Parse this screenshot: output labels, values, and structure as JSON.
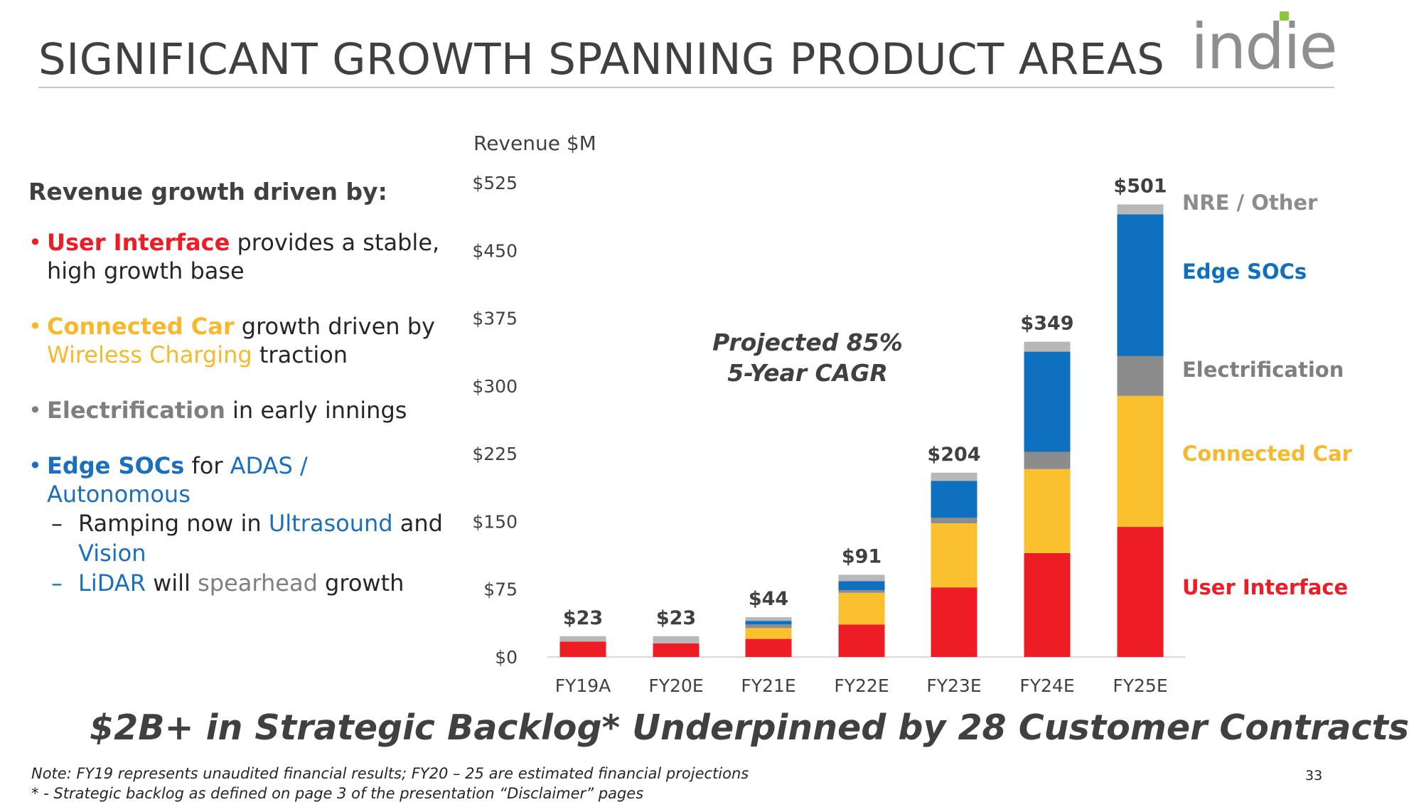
{
  "header": {
    "title": "SIGNIFICANT GROWTH SPANNING PRODUCT AREAS",
    "logo_text": "indie"
  },
  "left_panel": {
    "heading": "Revenue growth driven by:",
    "b1": {
      "hl": "User Interface",
      "rest": " provides a stable,",
      "line2": "high growth base"
    },
    "b2": {
      "hl": "Connected Car",
      "rest": " growth driven by",
      "hl2": "Wireless Charging",
      "rest2": " traction"
    },
    "b3": {
      "hl": "Electrification",
      "rest": " in early innings"
    },
    "b4": {
      "hl": "Edge SOCs",
      "mid": " for ",
      "hl2": "ADAS / Autonomous",
      "sub1": {
        "pre": "Ramping now in ",
        "hl": "Ultrasound",
        "post": " and",
        "line2": "Vision"
      },
      "sub2": {
        "hl": "LiDAR",
        "mid": " will ",
        "hl2": "spearhead",
        "post": " growth"
      }
    },
    "bullet_char": "•",
    "dash_char": "–"
  },
  "chart_data": {
    "type": "bar",
    "stacked": true,
    "ylabel": "Revenue $M",
    "ylim": [
      0,
      525
    ],
    "yticks": [
      0,
      75,
      150,
      225,
      300,
      375,
      450,
      525
    ],
    "ytick_labels": [
      "$0",
      "$75",
      "$150",
      "$225",
      "$300",
      "$375",
      "$450",
      "$525"
    ],
    "categories": [
      "FY19A",
      "FY20E",
      "FY21E",
      "FY22E",
      "FY23E",
      "FY24E",
      "FY25E"
    ],
    "totals": [
      23,
      23,
      44,
      91,
      204,
      349,
      501
    ],
    "total_labels": [
      "$23",
      "$23",
      "$44",
      "$91",
      "$204",
      "$349",
      "$501"
    ],
    "series": [
      {
        "name": "User Interface",
        "color": "#ee1c25",
        "values": [
          17,
          15,
          20,
          36,
          77,
          115,
          144
        ]
      },
      {
        "name": "Connected Car",
        "color": "#fbc02d",
        "values": [
          0,
          0,
          12,
          35,
          71,
          93,
          145
        ]
      },
      {
        "name": "Electrification",
        "color": "#8c8c8c",
        "values": [
          0,
          0,
          4,
          3,
          6,
          19,
          44
        ]
      },
      {
        "name": "Edge SOCs",
        "color": "#1070c0",
        "values": [
          0,
          0,
          4,
          10,
          41,
          111,
          157
        ]
      },
      {
        "name": "NRE / Other",
        "color": "#b8b8b8",
        "values": [
          6,
          8,
          4,
          7,
          9,
          11,
          11
        ]
      }
    ],
    "annotation": [
      "Projected 85%",
      "5-Year CAGR"
    ],
    "grid": false,
    "legend_position": "right"
  },
  "footer": {
    "backlog": "$2B+ in Strategic Backlog* Underpinned by 28 Customer Contracts",
    "note1": "Note: FY19 represents unaudited financial results; FY20 – 25 are estimated financial projections",
    "note2": "* - Strategic backlog as defined on page 3 of the presentation “Disclaimer” pages",
    "page_number": "33"
  }
}
